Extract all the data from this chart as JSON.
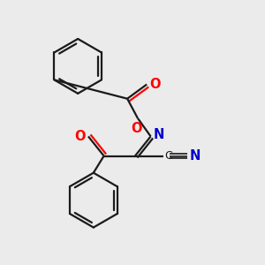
{
  "bg_color": "#ebebeb",
  "line_color": "#1a1a1a",
  "o_color": "#ff0000",
  "n_color": "#0000cd",
  "lw": 1.6,
  "lw_thin": 1.2,
  "fig_size": [
    3.0,
    3.0
  ],
  "dpi": 100,
  "xlim": [
    0,
    10
  ],
  "ylim": [
    0,
    10
  ]
}
